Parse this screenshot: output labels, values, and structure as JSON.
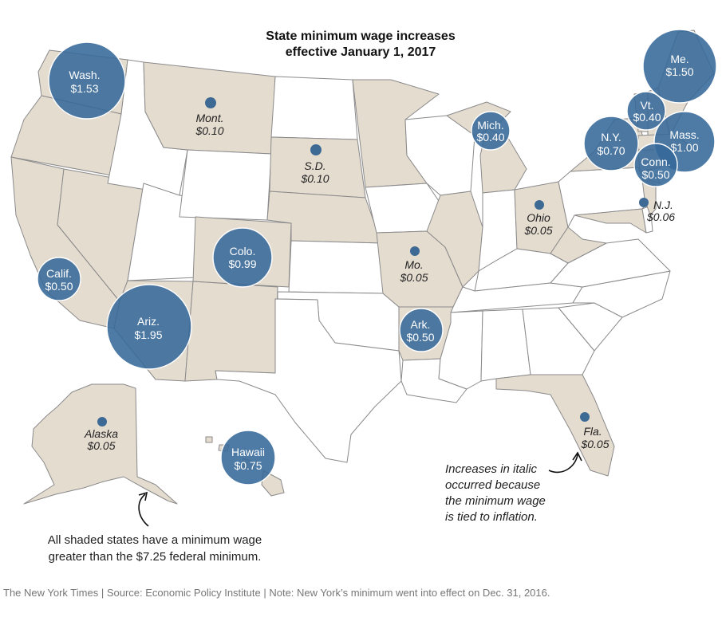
{
  "title": {
    "line1": "State minimum wage increases",
    "line2": "effective January 1, 2017"
  },
  "colors": {
    "shaded_state": "#e5dcd0",
    "unshaded_state": "#ffffff",
    "bubble": "#36699a",
    "dot": "#3d6a94"
  },
  "legend": {
    "shaded_note_line1": "All shaded states have a minimum wage",
    "shaded_note_line2": "greater than the $7.25 federal minimum.",
    "italic_note_line1": "Increases in italic",
    "italic_note_line2": "occurred because",
    "italic_note_line3": "the minimum wage",
    "italic_note_line4": "is tied to inflation."
  },
  "credit": "The New York Times  |  Source: Economic Policy Institute | Note: New York’s minimum went into effect on Dec. 31, 2016.",
  "bubbles": {
    "wa": {
      "name": "Wash.",
      "value": "$1.53",
      "increase": 1.53
    },
    "ca": {
      "name": "Calif.",
      "value": "$0.50",
      "increase": 0.5
    },
    "az": {
      "name": "Ariz.",
      "value": "$1.95",
      "increase": 1.95
    },
    "co": {
      "name": "Colo.",
      "value": "$0.99",
      "increase": 0.99
    },
    "ar": {
      "name": "Ark.",
      "value": "$0.50",
      "increase": 0.5
    },
    "mi": {
      "name": "Mich.",
      "value": "$0.40",
      "increase": 0.4
    },
    "ny": {
      "name": "N.Y.",
      "value": "$0.70",
      "increase": 0.7
    },
    "vt": {
      "name": "Vt.",
      "value": "$0.40",
      "increase": 0.4
    },
    "me": {
      "name": "Me.",
      "value": "$1.50",
      "increase": 1.5
    },
    "ma": {
      "name": "Mass.",
      "value": "$1.00",
      "increase": 1.0
    },
    "ct": {
      "name": "Conn.",
      "value": "$0.50",
      "increase": 0.5
    },
    "hi": {
      "name": "Hawaii",
      "value": "$0.75",
      "increase": 0.75
    }
  },
  "dots": {
    "mt": {
      "name": "Mont.",
      "value": "$0.10",
      "increase": 0.1
    },
    "sd": {
      "name": "S.D.",
      "value": "$0.10",
      "increase": 0.1
    },
    "mo": {
      "name": "Mo.",
      "value": "$0.05",
      "increase": 0.05
    },
    "oh": {
      "name": "Ohio",
      "value": "$0.05",
      "increase": 0.05
    },
    "nj": {
      "name": "N.J.",
      "value": "$0.06",
      "increase": 0.06
    },
    "fl": {
      "name": "Fla.",
      "value": "$0.05",
      "increase": 0.05
    },
    "ak": {
      "name": "Alaska",
      "value": "$0.05",
      "increase": 0.05
    }
  }
}
